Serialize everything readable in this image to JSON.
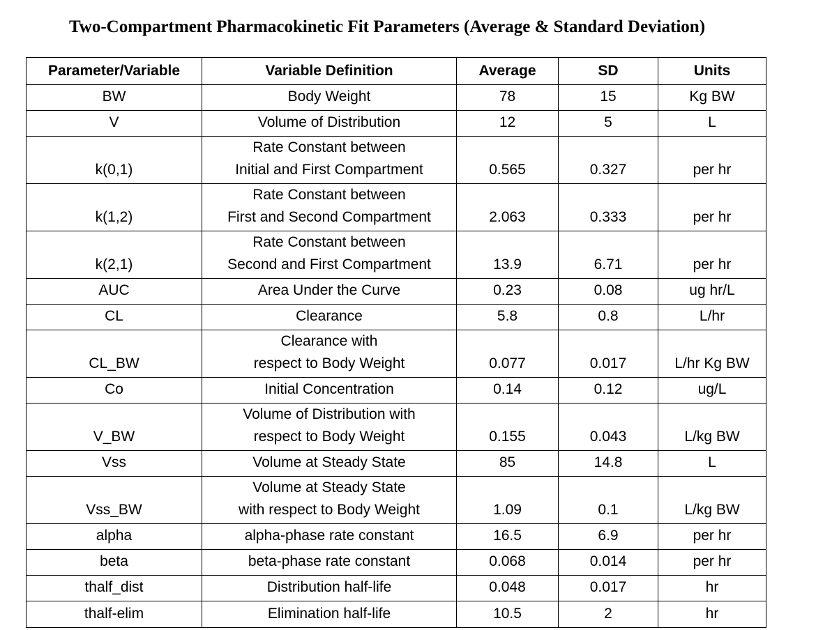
{
  "title": "Two-Compartment Pharmacokinetic Fit Parameters (Average & Standard Deviation)",
  "table": {
    "headers": [
      "Parameter/Variable",
      "Variable Definition",
      "Average",
      "SD",
      "Units"
    ],
    "rows": [
      {
        "parameter": "BW",
        "definition": [
          "Body Weight"
        ],
        "average": "78",
        "sd": "15",
        "units": "Kg BW"
      },
      {
        "parameter": "V",
        "definition": [
          "Volume of Distribution"
        ],
        "average": "12",
        "sd": "5",
        "units": "L"
      },
      {
        "parameter": "k(0,1)",
        "definition": [
          "Rate Constant between",
          "Initial and First Compartment"
        ],
        "average": "0.565",
        "sd": "0.327",
        "units": "per hr"
      },
      {
        "parameter": "k(1,2)",
        "definition": [
          "Rate Constant between",
          "First and Second Compartment"
        ],
        "average": "2.063",
        "sd": "0.333",
        "units": "per hr"
      },
      {
        "parameter": "k(2,1)",
        "definition": [
          "Rate Constant between",
          "Second and First Compartment"
        ],
        "average": "13.9",
        "sd": "6.71",
        "units": "per hr"
      },
      {
        "parameter": "AUC",
        "definition": [
          "Area Under the Curve"
        ],
        "average": "0.23",
        "sd": "0.08",
        "units": "ug hr/L"
      },
      {
        "parameter": "CL",
        "definition": [
          "Clearance"
        ],
        "average": "5.8",
        "sd": "0.8",
        "units": "L/hr"
      },
      {
        "parameter": "CL_BW",
        "definition": [
          "Clearance with",
          "respect to Body Weight"
        ],
        "average": "0.077",
        "sd": "0.017",
        "units": "L/hr Kg BW"
      },
      {
        "parameter": "Co",
        "definition": [
          "Initial Concentration"
        ],
        "average": "0.14",
        "sd": "0.12",
        "units": "ug/L"
      },
      {
        "parameter": "V_BW",
        "definition": [
          "Volume of Distribution with",
          "respect to Body Weight"
        ],
        "average": "0.155",
        "sd": "0.043",
        "units": "L/kg BW"
      },
      {
        "parameter": "Vss",
        "definition": [
          "Volume at Steady State"
        ],
        "average": "85",
        "sd": "14.8",
        "units": "L"
      },
      {
        "parameter": "Vss_BW",
        "definition": [
          "Volume at Steady State",
          "with respect to Body Weight"
        ],
        "average": "1.09",
        "sd": "0.1",
        "units": "L/kg BW"
      },
      {
        "parameter": "alpha",
        "definition": [
          "alpha-phase rate constant"
        ],
        "average": "16.5",
        "sd": "6.9",
        "units": "per hr"
      },
      {
        "parameter": "beta",
        "definition": [
          "beta-phase rate constant"
        ],
        "average": "0.068",
        "sd": "0.014",
        "units": "per hr"
      },
      {
        "parameter": "thalf_dist",
        "definition": [
          "Distribution half-life"
        ],
        "average": "0.048",
        "sd": "0.017",
        "units": "hr"
      },
      {
        "parameter": "thalf-elim",
        "definition": [
          "Elimination half-life"
        ],
        "average": "10.5",
        "sd": "2",
        "units": "hr"
      }
    ]
  }
}
